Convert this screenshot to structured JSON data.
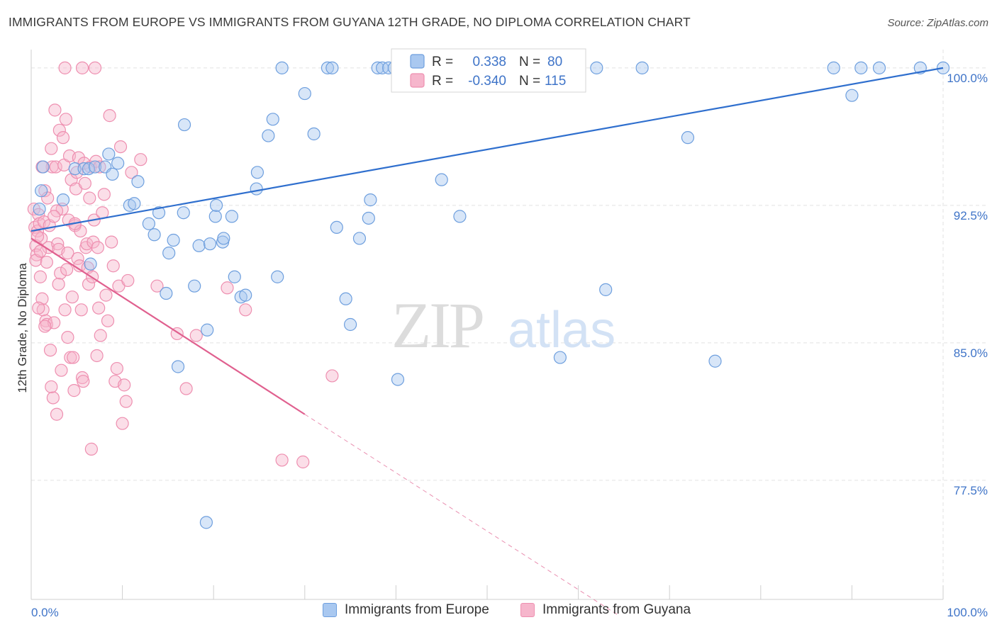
{
  "title": "IMMIGRANTS FROM EUROPE VS IMMIGRANTS FROM GUYANA 12TH GRADE, NO DIPLOMA CORRELATION CHART",
  "source": "Source: ZipAtlas.com",
  "watermark": {
    "zip": "ZIP",
    "atlas": "atlas"
  },
  "colors": {
    "europe_fill": "#a9c8f0",
    "europe_stroke": "#6e9fde",
    "europe_line": "#2f6fce",
    "guyana_fill": "#f6b6cc",
    "guyana_stroke": "#ee8fb0",
    "guyana_line": "#e0608f",
    "axis_text": "#3f74c8",
    "grid": "#e2e2e2"
  },
  "stats_legend": [
    {
      "r_label": "R =",
      "r_value": "0.338",
      "n_label": "N =",
      "n_value": "80"
    },
    {
      "r_label": "R =",
      "r_value": "-0.340",
      "n_label": "N =",
      "n_value": "115"
    }
  ],
  "legend": {
    "europe": "Immigrants from Europe",
    "guyana": "Immigrants from Guyana"
  },
  "chart_data": {
    "type": "scatter",
    "xlabel": "",
    "ylabel": "12th Grade, No Diploma",
    "xlim": [
      0,
      100
    ],
    "ylim": [
      71.0,
      101.0
    ],
    "x_tick_labels": [
      "0.0%",
      "100.0%"
    ],
    "y_ticks": [
      77.5,
      85.0,
      92.5,
      100.0
    ],
    "y_tick_labels": [
      "77.5%",
      "85.0%",
      "92.5%",
      "100.0%"
    ],
    "grid": true,
    "series": [
      {
        "name": "Immigrants from Europe",
        "r": 0.338,
        "n": 80,
        "trend": {
          "x": [
            0,
            100
          ],
          "y": [
            91.1,
            100.0
          ],
          "style": "solid"
        },
        "points": [
          [
            0.9,
            92.3
          ],
          [
            1.1,
            93.3
          ],
          [
            1.3,
            94.6
          ],
          [
            3.5,
            92.8
          ],
          [
            4.8,
            94.5
          ],
          [
            5.8,
            94.5
          ],
          [
            6.3,
            94.5
          ],
          [
            7.0,
            94.6
          ],
          [
            6.5,
            89.3
          ],
          [
            8.1,
            94.6
          ],
          [
            8.5,
            95.3
          ],
          [
            8.9,
            94.2
          ],
          [
            9.5,
            94.8
          ],
          [
            10.8,
            92.5
          ],
          [
            11.3,
            92.6
          ],
          [
            11.7,
            93.8
          ],
          [
            12.9,
            91.5
          ],
          [
            13.5,
            90.9
          ],
          [
            14.0,
            92.1
          ],
          [
            14.8,
            87.7
          ],
          [
            15.1,
            89.9
          ],
          [
            15.6,
            90.6
          ],
          [
            16.1,
            83.7
          ],
          [
            16.7,
            92.1
          ],
          [
            16.8,
            96.9
          ],
          [
            17.9,
            88.1
          ],
          [
            18.4,
            90.3
          ],
          [
            19.3,
            85.7
          ],
          [
            19.6,
            90.4
          ],
          [
            20.2,
            91.9
          ],
          [
            20.3,
            92.5
          ],
          [
            21.0,
            90.5
          ],
          [
            21.1,
            90.7
          ],
          [
            22.0,
            91.9
          ],
          [
            22.3,
            88.6
          ],
          [
            23.0,
            87.5
          ],
          [
            23.5,
            87.6
          ],
          [
            19.2,
            75.2
          ],
          [
            24.8,
            94.3
          ],
          [
            24.7,
            93.4
          ],
          [
            26.0,
            96.3
          ],
          [
            26.5,
            97.2
          ],
          [
            27.0,
            88.6
          ],
          [
            27.5,
            100.0
          ],
          [
            30.0,
            98.6
          ],
          [
            31.0,
            96.4
          ],
          [
            32.5,
            100.0
          ],
          [
            33.0,
            100.0
          ],
          [
            33.5,
            91.3
          ],
          [
            34.5,
            87.4
          ],
          [
            35.0,
            86.0
          ],
          [
            36.0,
            90.7
          ],
          [
            37.0,
            91.8
          ],
          [
            37.2,
            92.8
          ],
          [
            38.0,
            100.0
          ],
          [
            38.5,
            100.0
          ],
          [
            39.2,
            100.0
          ],
          [
            39.8,
            100.0
          ],
          [
            40.2,
            83.0
          ],
          [
            40.7,
            100.0
          ],
          [
            41.5,
            100.0
          ],
          [
            42.8,
            100.0
          ],
          [
            44.8,
            100.0
          ],
          [
            45.0,
            93.9
          ],
          [
            47.0,
            91.9
          ],
          [
            50.0,
            100.0
          ],
          [
            51.0,
            100.0
          ],
          [
            58.0,
            84.2
          ],
          [
            60.0,
            100.0
          ],
          [
            62.0,
            100.0
          ],
          [
            63.0,
            87.9
          ],
          [
            67.0,
            100.0
          ],
          [
            72.0,
            96.2
          ],
          [
            75.0,
            84.0
          ],
          [
            88.0,
            100.0
          ],
          [
            90.0,
            98.5
          ],
          [
            91.0,
            100.0
          ],
          [
            93.0,
            100.0
          ],
          [
            97.5,
            100.0
          ],
          [
            100.0,
            100.0
          ]
        ]
      },
      {
        "name": "Immigrants from Guyana",
        "r": -0.34,
        "n": 115,
        "trend": {
          "x": [
            0,
            30
          ],
          "y": [
            90.7,
            81.1
          ],
          "dashed_to": [
            64.5,
            70.1
          ],
          "style": "solid-then-dashed"
        },
        "points": [
          [
            0.3,
            92.3
          ],
          [
            0.4,
            91.3
          ],
          [
            0.5,
            90.3
          ],
          [
            0.6,
            89.8
          ],
          [
            0.7,
            91.1
          ],
          [
            0.8,
            92.0
          ],
          [
            0.5,
            89.5
          ],
          [
            0.9,
            91.5
          ],
          [
            1.0,
            88.6
          ],
          [
            1.1,
            90.7
          ],
          [
            1.2,
            87.4
          ],
          [
            1.3,
            86.8
          ],
          [
            1.4,
            91.6
          ],
          [
            1.5,
            93.3
          ],
          [
            1.6,
            86.2
          ],
          [
            1.7,
            86.0
          ],
          [
            1.8,
            92.9
          ],
          [
            1.9,
            90.2
          ],
          [
            2.0,
            91.4
          ],
          [
            2.1,
            84.6
          ],
          [
            2.2,
            95.6
          ],
          [
            2.3,
            94.6
          ],
          [
            2.4,
            82.0
          ],
          [
            2.5,
            86.1
          ],
          [
            2.6,
            97.7
          ],
          [
            2.7,
            94.6
          ],
          [
            2.8,
            81.1
          ],
          [
            2.9,
            90.4
          ],
          [
            3.0,
            90.1
          ],
          [
            3.1,
            96.6
          ],
          [
            3.2,
            88.8
          ],
          [
            3.3,
            83.5
          ],
          [
            3.4,
            92.3
          ],
          [
            3.5,
            96.2
          ],
          [
            3.6,
            94.7
          ],
          [
            3.7,
            86.8
          ],
          [
            3.8,
            97.2
          ],
          [
            3.9,
            89.0
          ],
          [
            4.0,
            85.3
          ],
          [
            4.1,
            91.7
          ],
          [
            4.2,
            95.2
          ],
          [
            4.3,
            84.2
          ],
          [
            4.4,
            93.9
          ],
          [
            4.5,
            87.5
          ],
          [
            4.6,
            84.2
          ],
          [
            4.7,
            82.4
          ],
          [
            4.8,
            91.4
          ],
          [
            4.9,
            93.4
          ],
          [
            5.0,
            94.3
          ],
          [
            5.1,
            89.6
          ],
          [
            5.2,
            95.1
          ],
          [
            5.3,
            89.2
          ],
          [
            5.4,
            91.1
          ],
          [
            5.5,
            86.8
          ],
          [
            5.6,
            83.1
          ],
          [
            5.7,
            82.9
          ],
          [
            5.8,
            94.8
          ],
          [
            5.9,
            93.7
          ],
          [
            6.0,
            90.2
          ],
          [
            6.1,
            90.4
          ],
          [
            6.2,
            89.1
          ],
          [
            6.3,
            88.2
          ],
          [
            6.4,
            92.9
          ],
          [
            6.5,
            94.6
          ],
          [
            6.6,
            79.2
          ],
          [
            6.7,
            88.6
          ],
          [
            6.8,
            90.5
          ],
          [
            6.9,
            91.7
          ],
          [
            7.0,
            100.0
          ],
          [
            7.1,
            94.9
          ],
          [
            7.2,
            84.3
          ],
          [
            7.3,
            90.2
          ],
          [
            7.4,
            86.9
          ],
          [
            7.5,
            94.6
          ],
          [
            7.6,
            85.4
          ],
          [
            7.8,
            92.1
          ],
          [
            8.0,
            93.1
          ],
          [
            8.2,
            87.6
          ],
          [
            8.4,
            86.2
          ],
          [
            8.6,
            97.4
          ],
          [
            8.8,
            90.5
          ],
          [
            9.0,
            89.2
          ],
          [
            9.2,
            82.9
          ],
          [
            9.4,
            83.6
          ],
          [
            9.6,
            88.1
          ],
          [
            9.8,
            95.7
          ],
          [
            10.0,
            80.6
          ],
          [
            10.2,
            82.7
          ],
          [
            10.4,
            81.8
          ],
          [
            10.6,
            88.4
          ],
          [
            3.7,
            100.0
          ],
          [
            5.6,
            100.0
          ],
          [
            4.8,
            91.5
          ],
          [
            1.7,
            89.4
          ],
          [
            2.8,
            92.2
          ],
          [
            0.8,
            86.9
          ],
          [
            1.5,
            85.9
          ],
          [
            2.2,
            82.6
          ],
          [
            1.0,
            90.0
          ],
          [
            2.5,
            91.9
          ],
          [
            3.0,
            88.2
          ],
          [
            4.0,
            89.9
          ],
          [
            13.8,
            88.1
          ],
          [
            16.0,
            85.5
          ],
          [
            17.0,
            82.5
          ],
          [
            18.1,
            85.4
          ],
          [
            21.5,
            88.0
          ],
          [
            23.5,
            86.8
          ],
          [
            27.5,
            78.6
          ],
          [
            33.0,
            83.2
          ],
          [
            29.8,
            78.5
          ],
          [
            12.0,
            95.0
          ],
          [
            11.0,
            94.3
          ],
          [
            1.2,
            94.6
          ],
          [
            0.7,
            90.8
          ]
        ]
      }
    ]
  }
}
